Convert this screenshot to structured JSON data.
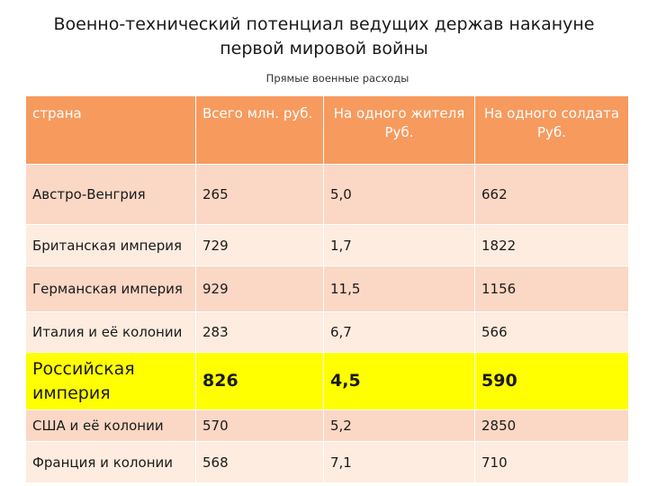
{
  "title_line1": "Военно-технический потенциал ведущих держав накануне",
  "title_line2": "первой мировой войны",
  "subtitle": "Прямые военные расходы",
  "colors": {
    "header": "#f79a5e",
    "row_odd": "#fbd7c5",
    "row_even": "#fdecdf",
    "highlight": "#ffff00"
  },
  "table": {
    "headers": [
      "страна",
      "Всего млн. руб.",
      "На одного жителя Руб.",
      "На одного солдата Руб."
    ],
    "rows": [
      [
        "Австро-Венгрия",
        "265",
        "5,0",
        "662"
      ],
      [
        "Британская империя",
        "729",
        "1,7",
        "1822"
      ],
      [
        "Германская империя",
        "929",
        "11,5",
        "1156"
      ],
      [
        "Италия и её колонии",
        "283",
        "6,7",
        "566"
      ],
      [
        "Российская империя",
        "826",
        "4,5",
        "590"
      ],
      [
        "США и её колонии",
        "570",
        "5,2",
        "2850"
      ],
      [
        "Франция и колонии",
        "568",
        "7,1",
        "710"
      ]
    ]
  }
}
